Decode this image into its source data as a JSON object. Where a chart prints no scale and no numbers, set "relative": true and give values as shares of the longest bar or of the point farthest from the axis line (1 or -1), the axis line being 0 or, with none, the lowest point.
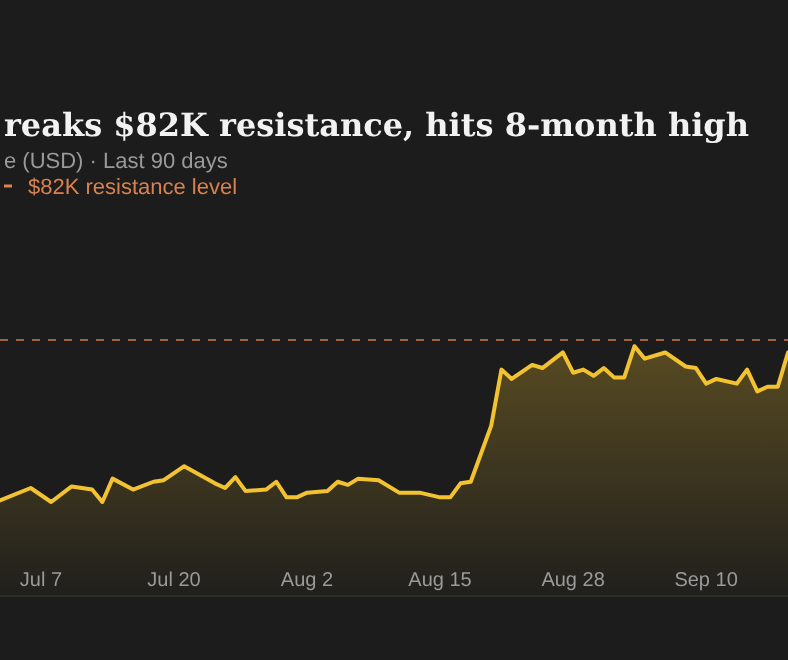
{
  "chart_data": {
    "type": "area",
    "title": "reaks $82K resistance, hits 8-month high",
    "subtitle": "e (USD) · Last 90 days",
    "relative": true,
    "x": [
      "--07-03",
      "--07-06",
      "--07-08",
      "--07-10",
      "--07-12",
      "--07-13",
      "--07-14",
      "--07-16",
      "--07-18",
      "--07-19",
      "--07-21",
      "--07-24",
      "--07-25",
      "--07-26",
      "--07-27",
      "--07-29",
      "--07-30",
      "--07-31",
      "--08-01",
      "--08-02",
      "--08-04",
      "--08-05",
      "--08-06",
      "--08-07",
      "--08-09",
      "--08-11",
      "--08-13",
      "--08-15",
      "--08-16",
      "--08-17",
      "--08-18",
      "--08-20",
      "--08-21",
      "--08-22",
      "--08-24",
      "--08-25",
      "--08-27",
      "--08-28",
      "--08-29",
      "--08-30",
      "--08-31",
      "--09-01",
      "--09-02",
      "--09-03",
      "--09-04",
      "--09-06",
      "--09-08",
      "--09-09",
      "--09-10",
      "--09-11",
      "--09-13",
      "--09-14",
      "--09-15",
      "--09-16",
      "--09-17",
      "--09-18"
    ],
    "series": [
      {
        "color": "#f2c230",
        "values": [
          0.01,
          0.09,
          0,
          0.1,
          0.08,
          0,
          0.15,
          0.08,
          0.13,
          0.14,
          0.23,
          0.12,
          0.09,
          0.16,
          0.07,
          0.08,
          0.13,
          0.03,
          0.03,
          0.06,
          0.07,
          0.13,
          0.11,
          0.15,
          0.14,
          0.06,
          0.06,
          0.03,
          0.03,
          0.12,
          0.13,
          0.49,
          0.85,
          0.79,
          0.88,
          0.86,
          0.96,
          0.83,
          0.85,
          0.81,
          0.86,
          0.8,
          0.8,
          1,
          0.92,
          0.96,
          0.87,
          0.86,
          0.76,
          0.79,
          0.76,
          0.85,
          0.71,
          0.74,
          0.74,
          0.96
        ]
      }
    ],
    "xlim": [
      "--07-03",
      "--09-18"
    ],
    "xticks": [
      {
        "value": "--07-07",
        "label": "Jul 7"
      },
      {
        "value": "--07-20",
        "label": "Jul 20"
      },
      {
        "value": "--08-02",
        "label": "Aug 2"
      },
      {
        "value": "--08-15",
        "label": "Aug 15"
      },
      {
        "value": "--08-28",
        "label": "Aug 28"
      },
      {
        "value": "--09-10",
        "label": "Sep 10"
      }
    ],
    "ref_lines": [
      {
        "axis": "y",
        "value": 1.04,
        "label": "$82K resistance level",
        "color": "#d9824f",
        "line_style": "dashed"
      }
    ]
  }
}
